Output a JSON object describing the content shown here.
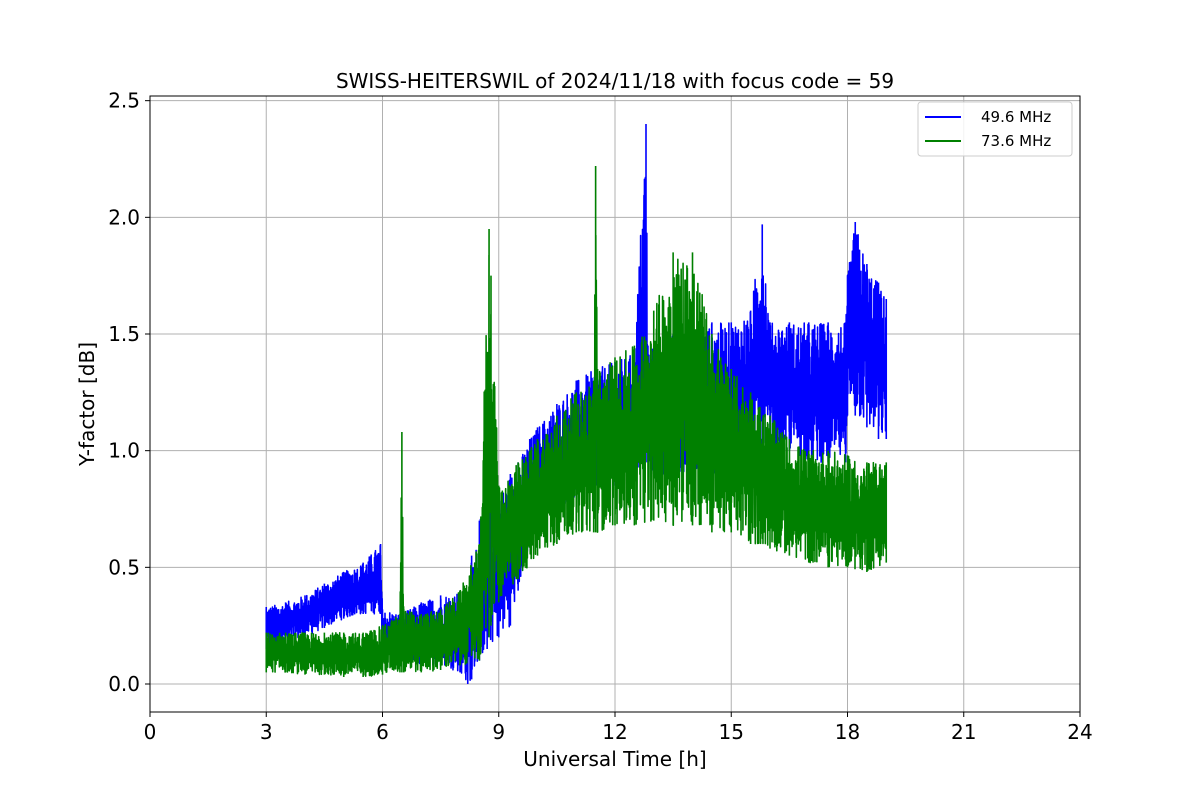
{
  "chart_data": {
    "type": "line",
    "title": "SWISS-HEITERSWIL of 2024/11/18 with focus code = 59",
    "xlabel": "Universal Time [h]",
    "ylabel": "Y-factor [dB]",
    "xlim": [
      0,
      24
    ],
    "ylim": [
      -0.12,
      2.52
    ],
    "xticks": [
      "0",
      "3",
      "6",
      "9",
      "12",
      "15",
      "18",
      "21",
      "24"
    ],
    "yticks": [
      "0.0",
      "0.5",
      "1.0",
      "1.5",
      "2.0",
      "2.5"
    ],
    "grid": true,
    "legend_position": "top-right",
    "series": [
      {
        "name": "49.6 MHz",
        "color": "#0000ff",
        "x": [
          3.0,
          3.5,
          4.0,
          4.5,
          5.0,
          5.5,
          5.95,
          6.0,
          6.5,
          7.0,
          7.5,
          8.0,
          8.2,
          8.3,
          8.5,
          8.7,
          9.0,
          9.3,
          9.5,
          9.8,
          10.0,
          10.5,
          11.0,
          11.5,
          12.0,
          12.5,
          12.8,
          12.85,
          13.0,
          13.5,
          14.0,
          14.5,
          15.0,
          15.5,
          15.8,
          16.0,
          16.5,
          17.0,
          17.5,
          17.95,
          18.0,
          18.2,
          18.5,
          18.8,
          19.0
        ],
        "low": [
          0.15,
          0.17,
          0.2,
          0.24,
          0.28,
          0.3,
          0.3,
          0.12,
          0.1,
          0.08,
          0.08,
          0.05,
          0.0,
          0.02,
          0.1,
          0.15,
          0.2,
          0.25,
          0.4,
          0.6,
          0.7,
          0.75,
          0.8,
          0.85,
          0.85,
          0.9,
          0.95,
          0.95,
          0.9,
          0.9,
          0.9,
          0.9,
          0.9,
          0.95,
          0.95,
          1.0,
          1.0,
          0.95,
          0.95,
          0.95,
          1.15,
          1.15,
          1.1,
          1.05,
          1.05
        ],
        "high": [
          0.33,
          0.35,
          0.38,
          0.43,
          0.48,
          0.52,
          0.6,
          0.32,
          0.3,
          0.35,
          0.38,
          0.4,
          0.35,
          0.55,
          0.7,
          0.75,
          0.8,
          0.9,
          0.95,
          1.05,
          1.1,
          1.2,
          1.3,
          1.35,
          1.38,
          1.42,
          2.4,
          1.45,
          1.45,
          1.5,
          1.5,
          1.55,
          1.55,
          1.6,
          1.97,
          1.55,
          1.55,
          1.55,
          1.55,
          1.55,
          1.75,
          1.98,
          1.8,
          1.72,
          1.65
        ]
      },
      {
        "name": "73.6 MHz",
        "color": "#008000",
        "x": [
          3.0,
          3.5,
          4.0,
          4.5,
          5.0,
          5.5,
          6.0,
          6.45,
          6.5,
          6.55,
          7.0,
          7.5,
          8.0,
          8.5,
          8.75,
          8.8,
          9.0,
          9.5,
          10.0,
          10.5,
          11.0,
          11.45,
          11.5,
          11.55,
          12.0,
          12.5,
          13.0,
          13.5,
          14.0,
          14.5,
          15.0,
          15.5,
          16.0,
          16.5,
          17.0,
          17.5,
          18.0,
          18.5,
          19.0
        ],
        "low": [
          0.05,
          0.05,
          0.04,
          0.04,
          0.03,
          0.03,
          0.04,
          0.05,
          0.05,
          0.05,
          0.05,
          0.06,
          0.08,
          0.1,
          0.2,
          0.25,
          0.35,
          0.45,
          0.55,
          0.6,
          0.65,
          0.65,
          0.65,
          0.65,
          0.68,
          0.68,
          0.7,
          0.68,
          0.68,
          0.65,
          0.65,
          0.6,
          0.58,
          0.55,
          0.52,
          0.5,
          0.5,
          0.48,
          0.52
        ],
        "high": [
          0.22,
          0.22,
          0.22,
          0.22,
          0.22,
          0.22,
          0.25,
          0.3,
          1.08,
          0.32,
          0.3,
          0.32,
          0.4,
          0.6,
          1.95,
          1.75,
          0.85,
          0.95,
          1.05,
          1.15,
          1.25,
          1.3,
          2.22,
          1.35,
          1.4,
          1.45,
          1.6,
          1.85,
          1.85,
          1.5,
          1.35,
          1.25,
          1.15,
          1.05,
          1.0,
          1.0,
          0.98,
          0.95,
          0.95
        ]
      }
    ]
  }
}
